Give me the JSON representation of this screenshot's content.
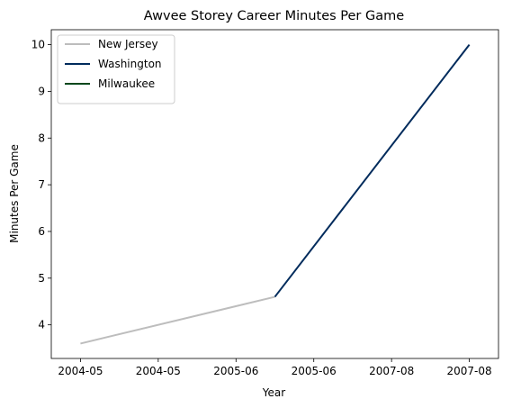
{
  "chart_data": {
    "type": "line",
    "title": "Awvee Storey Career Minutes Per Game",
    "xlabel": "Year",
    "ylabel": "Minutes Per Game",
    "x_tick_labels": [
      "2004-05",
      "2004-05",
      "2005-06",
      "2005-06",
      "2007-08",
      "2007-08"
    ],
    "y_ticks": [
      4,
      5,
      6,
      7,
      8,
      9,
      10
    ],
    "ylim": [
      3.28,
      10.32
    ],
    "grid": false,
    "legend_position": "top-left",
    "series": [
      {
        "name": "New Jersey",
        "color": "#bdbdbd",
        "points": [
          [
            0,
            3.6
          ],
          [
            1,
            4.6
          ]
        ]
      },
      {
        "name": "Washington",
        "color": "#002b5c",
        "points": [
          [
            1,
            4.6
          ],
          [
            2,
            10.0
          ]
        ]
      },
      {
        "name": "Milwaukee",
        "color": "#00471b",
        "points": []
      }
    ]
  }
}
